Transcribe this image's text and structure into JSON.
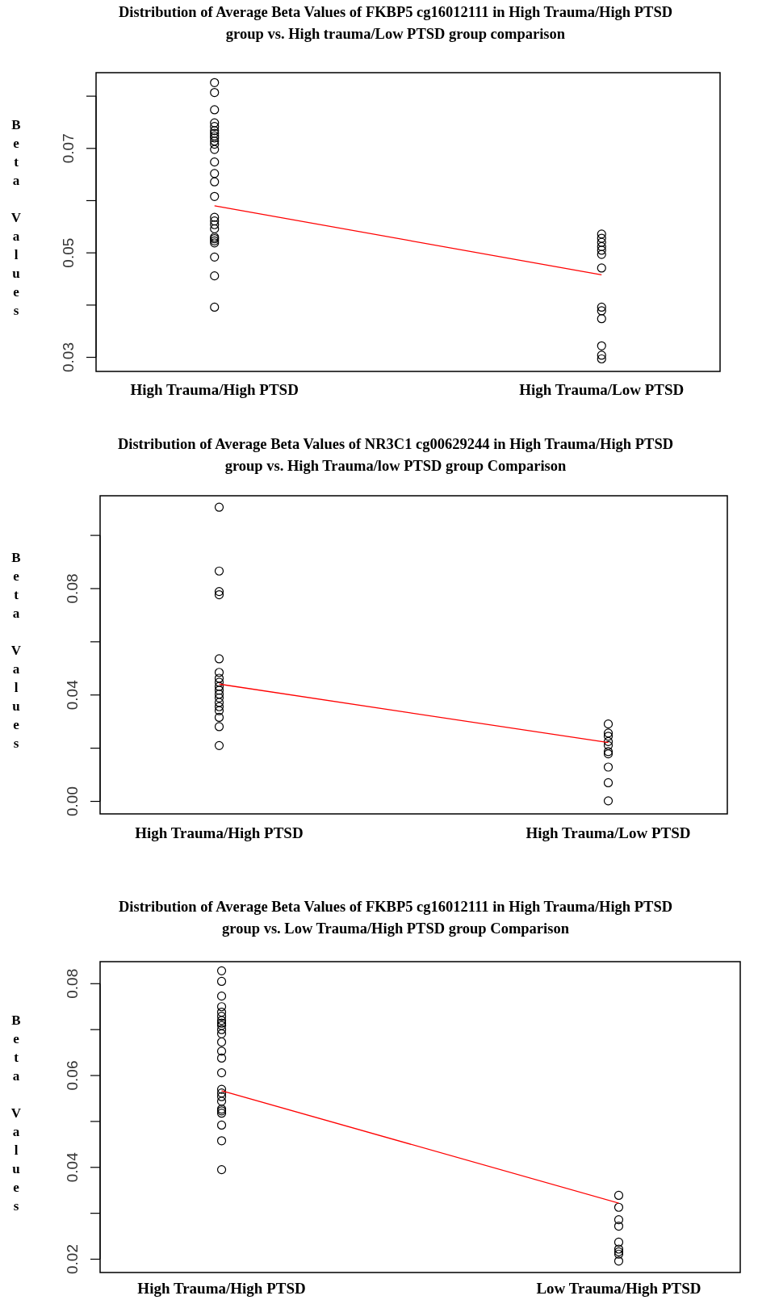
{
  "chart_data": [
    {
      "type": "scatter",
      "title": "Distribution of Average Beta Values of FKBP5 cg16012111 in High Trauma/High PTSD group vs. High trauma/Low PTSD group comparison",
      "ylabel": "Beta Values",
      "marker": "circle",
      "categories": [
        "High Trauma/High PTSD",
        "High Trauma/Low PTSD"
      ],
      "ylim": [
        0.0273,
        0.0845
      ],
      "yticks": [
        0.03,
        {
          "value": 0.04,
          "label": null
        },
        0.05,
        {
          "value": 0.06,
          "label": null
        },
        0.07,
        {
          "value": 0.08,
          "label": null
        }
      ],
      "series": [
        {
          "type": "scatter",
          "color": "#000000",
          "x": [
            "High Trauma/High PTSD",
            "High Trauma/High PTSD",
            "High Trauma/High PTSD",
            "High Trauma/High PTSD",
            "High Trauma/High PTSD",
            "High Trauma/High PTSD",
            "High Trauma/High PTSD",
            "High Trauma/High PTSD",
            "High Trauma/High PTSD",
            "High Trauma/High PTSD",
            "High Trauma/High PTSD",
            "High Trauma/High PTSD",
            "High Trauma/High PTSD",
            "High Trauma/High PTSD",
            "High Trauma/High PTSD",
            "High Trauma/High PTSD",
            "High Trauma/High PTSD",
            "High Trauma/High PTSD",
            "High Trauma/High PTSD",
            "High Trauma/High PTSD",
            "High Trauma/High PTSD",
            "High Trauma/High PTSD",
            "High Trauma/High PTSD",
            "High Trauma/High PTSD",
            "High Trauma/High PTSD",
            "High Trauma/High PTSD",
            "High Trauma/High PTSD",
            "High Trauma/Low PTSD",
            "High Trauma/Low PTSD",
            "High Trauma/Low PTSD",
            "High Trauma/Low PTSD",
            "High Trauma/Low PTSD",
            "High Trauma/Low PTSD",
            "High Trauma/Low PTSD",
            "High Trauma/Low PTSD",
            "High Trauma/Low PTSD",
            "High Trauma/Low PTSD",
            "High Trauma/Low PTSD",
            "High Trauma/Low PTSD",
            "High Trauma/Low PTSD"
          ],
          "values": [
            0.0826,
            0.0807,
            0.0774,
            0.0749,
            0.0742,
            0.0734,
            0.0729,
            0.0724,
            0.072,
            0.0714,
            0.0708,
            0.0698,
            0.0674,
            0.0652,
            0.0636,
            0.0608,
            0.0568,
            0.0561,
            0.0554,
            0.0546,
            0.053,
            0.0527,
            0.0523,
            0.0519,
            0.0492,
            0.0456,
            0.0396,
            0.0536,
            0.0528,
            0.052,
            0.0512,
            0.0505,
            0.0497,
            0.0471,
            0.0396,
            0.0389,
            0.0374,
            0.0322,
            0.0304,
            0.0297
          ]
        },
        {
          "type": "line",
          "color": "#ff0000",
          "marker": "none",
          "values": [
            0.059,
            0.0458
          ]
        }
      ]
    },
    {
      "type": "scatter",
      "title": "Distribution of Average Beta Values of NR3C1 cg00629244 in High Trauma/High PTSD group vs. High Trauma/low PTSD group Comparison",
      "ylabel": "Beta Values",
      "marker": "circle",
      "categories": [
        "High Trauma/High PTSD",
        "High Trauma/Low PTSD"
      ],
      "ylim": [
        -0.0047,
        0.1149
      ],
      "yticks": [
        {
          "value": 0,
          "label": "0.00"
        },
        {
          "value": 0.02,
          "label": null
        },
        {
          "value": 0.04,
          "label": "0.04"
        },
        {
          "value": 0.06,
          "label": null
        },
        {
          "value": 0.08,
          "label": "0.08"
        },
        {
          "value": 0.1,
          "label": null
        }
      ],
      "series": [
        {
          "type": "scatter",
          "color": "#000000",
          "x": [
            "High Trauma/High PTSD",
            "High Trauma/High PTSD",
            "High Trauma/High PTSD",
            "High Trauma/High PTSD",
            "High Trauma/High PTSD",
            "High Trauma/High PTSD",
            "High Trauma/High PTSD",
            "High Trauma/High PTSD",
            "High Trauma/High PTSD",
            "High Trauma/High PTSD",
            "High Trauma/High PTSD",
            "High Trauma/High PTSD",
            "High Trauma/High PTSD",
            "High Trauma/High PTSD",
            "High Trauma/High PTSD",
            "High Trauma/High PTSD",
            "High Trauma/High PTSD",
            "High Trauma/High PTSD",
            "High Trauma/Low PTSD",
            "High Trauma/Low PTSD",
            "High Trauma/Low PTSD",
            "High Trauma/Low PTSD",
            "High Trauma/Low PTSD",
            "High Trauma/Low PTSD",
            "High Trauma/Low PTSD",
            "High Trauma/Low PTSD",
            "High Trauma/Low PTSD",
            "High Trauma/Low PTSD"
          ],
          "values": [
            0.1106,
            0.0866,
            0.0789,
            0.0777,
            0.0536,
            0.0485,
            0.0463,
            0.0448,
            0.0432,
            0.0418,
            0.0403,
            0.0389,
            0.0372,
            0.0356,
            0.0341,
            0.0316,
            0.0281,
            0.021,
            0.0291,
            0.0257,
            0.0245,
            0.0225,
            0.021,
            0.0187,
            0.0179,
            0.0129,
            0.007,
            0.0002
          ]
        },
        {
          "type": "line",
          "color": "#ff0000",
          "marker": "none",
          "values": [
            0.0441,
            0.0221
          ]
        }
      ]
    },
    {
      "type": "scatter",
      "title": "Distribution of Average Beta Values of FKBP5 cg16012111 in High Trauma/High PTSD group vs. Low Trauma/High PTSD group Comparison",
      "ylabel": "Beta Values",
      "marker": "circle",
      "categories": [
        "High Trauma/High PTSD",
        "Low Trauma/High PTSD"
      ],
      "ylim": [
        0.0171,
        0.0848
      ],
      "yticks": [
        {
          "value": 0.02,
          "label": "0.02"
        },
        {
          "value": 0.03,
          "label": null
        },
        {
          "value": 0.04,
          "label": "0.04"
        },
        {
          "value": 0.05,
          "label": null
        },
        {
          "value": 0.06,
          "label": "0.06"
        },
        {
          "value": 0.07,
          "label": null
        },
        {
          "value": 0.08,
          "label": "0.08"
        }
      ],
      "series": [
        {
          "type": "scatter",
          "color": "#000000",
          "x": [
            "High Trauma/High PTSD",
            "High Trauma/High PTSD",
            "High Trauma/High PTSD",
            "High Trauma/High PTSD",
            "High Trauma/High PTSD",
            "High Trauma/High PTSD",
            "High Trauma/High PTSD",
            "High Trauma/High PTSD",
            "High Trauma/High PTSD",
            "High Trauma/High PTSD",
            "High Trauma/High PTSD",
            "High Trauma/High PTSD",
            "High Trauma/High PTSD",
            "High Trauma/High PTSD",
            "High Trauma/High PTSD",
            "High Trauma/High PTSD",
            "High Trauma/High PTSD",
            "High Trauma/High PTSD",
            "High Trauma/High PTSD",
            "High Trauma/High PTSD",
            "High Trauma/High PTSD",
            "High Trauma/High PTSD",
            "High Trauma/High PTSD",
            "High Trauma/High PTSD",
            "High Trauma/High PTSD",
            "Low Trauma/High PTSD",
            "Low Trauma/High PTSD",
            "Low Trauma/High PTSD",
            "Low Trauma/High PTSD",
            "Low Trauma/High PTSD",
            "Low Trauma/High PTSD",
            "Low Trauma/High PTSD",
            "Low Trauma/High PTSD",
            "Low Trauma/High PTSD"
          ],
          "values": [
            0.0828,
            0.0805,
            0.0773,
            0.075,
            0.0738,
            0.0729,
            0.072,
            0.0714,
            0.0709,
            0.07,
            0.0691,
            0.0673,
            0.0653,
            0.0638,
            0.0606,
            0.057,
            0.0562,
            0.0554,
            0.0544,
            0.0527,
            0.0523,
            0.0518,
            0.0492,
            0.0458,
            0.0395,
            0.0339,
            0.0313,
            0.0286,
            0.0272,
            0.0237,
            0.0222,
            0.0216,
            0.0211,
            0.0196
          ]
        },
        {
          "type": "line",
          "color": "#ff0000",
          "marker": "none",
          "values": [
            0.0567,
            0.0322
          ]
        }
      ]
    }
  ]
}
